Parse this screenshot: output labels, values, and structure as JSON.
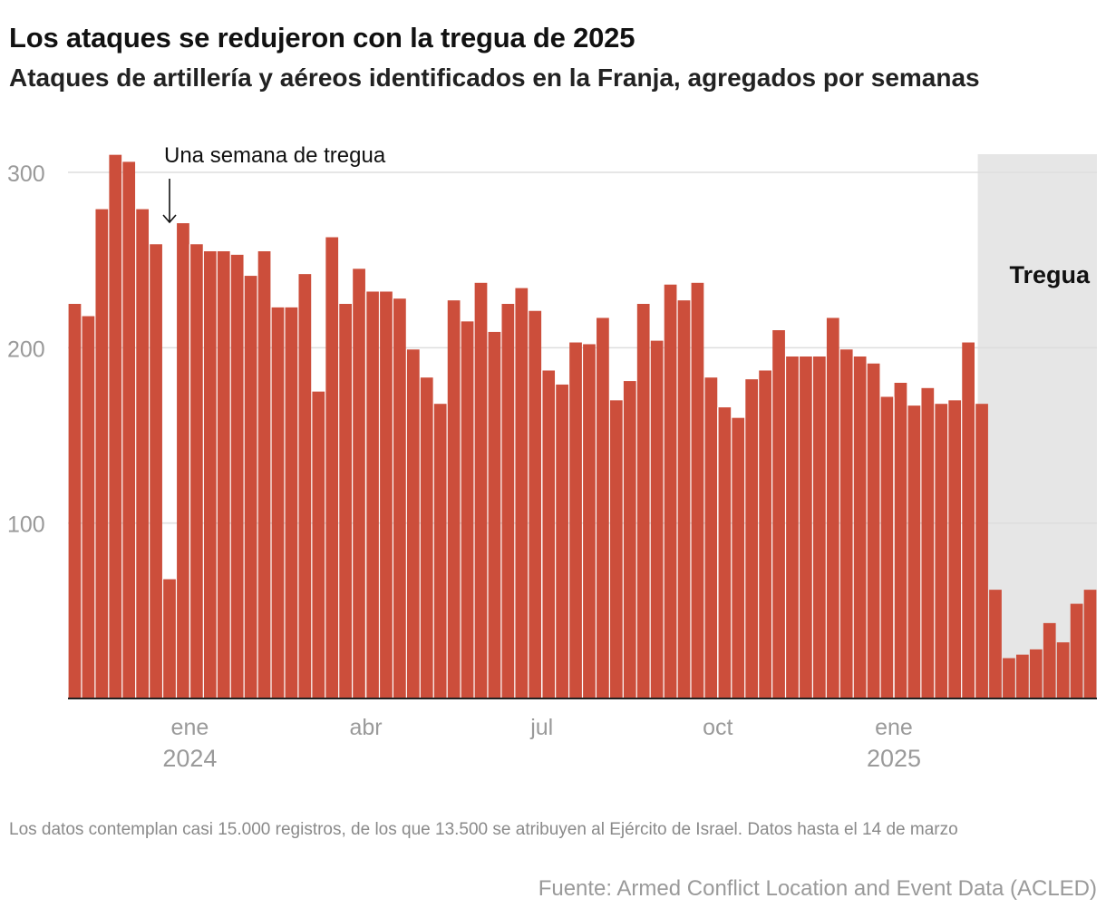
{
  "header": {
    "title": "Los ataques se redujeron con la tregua de 2025",
    "subtitle": "Ataques de artillería y aéreos identificados en la Franja, agregados por semanas"
  },
  "footer": {
    "note": "Los datos contemplan casi 15.000 registros, de los que 13.500 se atribuyen al Ejército de Israel. Datos hasta el 14 de marzo",
    "source": "Fuente: Armed Conflict Location and Event Data (ACLED)"
  },
  "colors": {
    "bar": "#cc4e3b",
    "truce_band": "#e6e6e6",
    "grid": "#dddddd",
    "axis_text": "#9a9a9a"
  },
  "chart_data": {
    "type": "bar",
    "ylim": [
      0,
      300
    ],
    "y_ticks": [
      100,
      200,
      300
    ],
    "grid": true,
    "x_ticks": [
      {
        "label": "ene",
        "year": "2024",
        "after_bar": 9
      },
      {
        "label": "abr",
        "year": "",
        "after_bar": 22
      },
      {
        "label": "jul",
        "year": "",
        "after_bar": 35
      },
      {
        "label": "oct",
        "year": "",
        "after_bar": 48
      },
      {
        "label": "ene",
        "year": "2025",
        "after_bar": 61
      }
    ],
    "values": [
      225,
      218,
      279,
      310,
      306,
      279,
      259,
      68,
      271,
      259,
      255,
      255,
      253,
      241,
      255,
      223,
      223,
      242,
      175,
      263,
      225,
      245,
      232,
      232,
      228,
      199,
      183,
      168,
      227,
      215,
      237,
      209,
      225,
      234,
      221,
      187,
      179,
      203,
      202,
      217,
      170,
      181,
      225,
      204,
      236,
      227,
      237,
      183,
      166,
      160,
      182,
      187,
      210,
      195,
      195,
      195,
      217,
      199,
      195,
      191,
      172,
      180,
      167,
      177,
      168,
      170,
      203,
      168,
      62,
      23,
      25,
      28,
      43,
      32,
      54,
      62
    ],
    "truce": {
      "label": "Tregua",
      "start_bar": 67,
      "end_bar": 74
    },
    "annotations": [
      {
        "text": "Una semana de tregua",
        "bar_index": 7
      }
    ]
  }
}
